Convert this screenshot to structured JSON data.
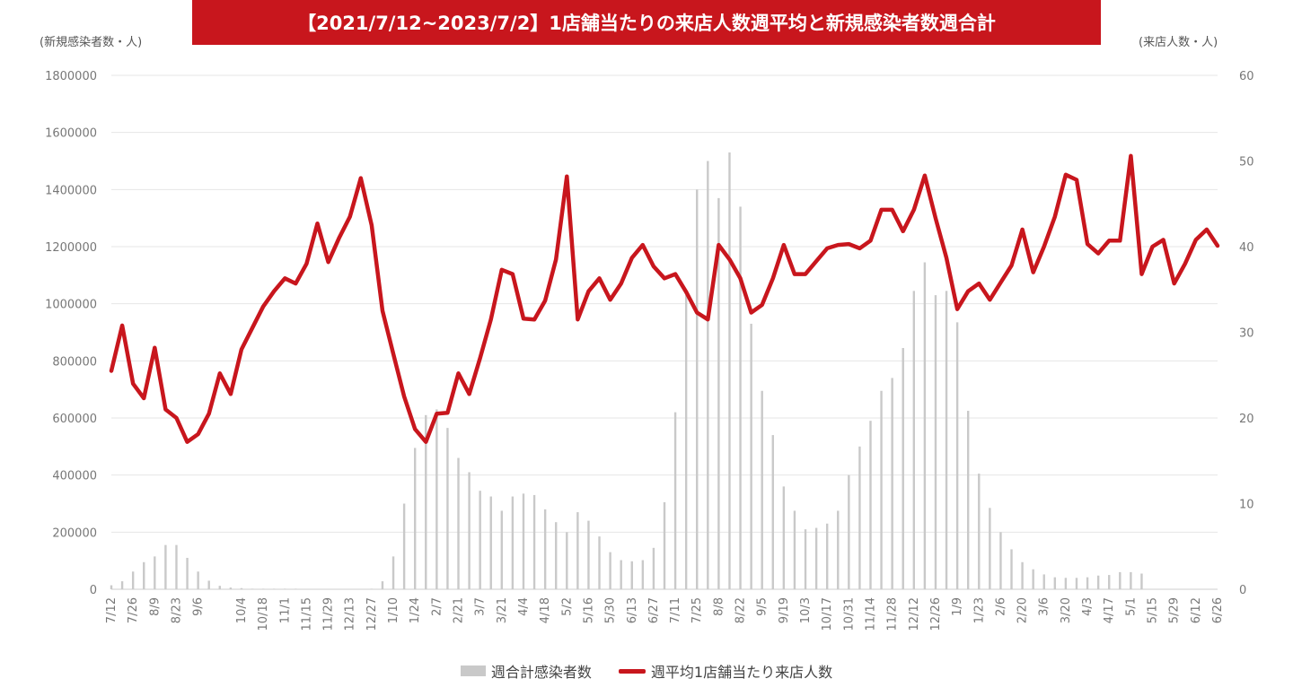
{
  "chart_data": {
    "type": "bar+line",
    "title": "【2021/7/12~2023/7/2】1店舗当たりの来店人数週平均と新規感染者数週合計",
    "ylabel": "(新規感染者数・人)",
    "y2label": "(来店人数・人)",
    "ylim": [
      0,
      1800000
    ],
    "y2lim": [
      0,
      60
    ],
    "yticks": [
      "1800000",
      "1600000",
      "1400000",
      "1200000",
      "1000000",
      "800000",
      "600000",
      "400000",
      "200000",
      "0"
    ],
    "y2ticks": [
      "60",
      "50",
      "40",
      "30",
      "20",
      "10",
      "0"
    ],
    "grid": true,
    "legend_position": "bottom",
    "x_labels": [
      "7/12",
      "7/26",
      "8/9",
      "8/23",
      "9/6",
      "10/4",
      "10/18",
      "11/1",
      "11/15",
      "11/29",
      "12/13",
      "12/27",
      "1/10",
      "1/24",
      "2/7",
      "2/21",
      "3/7",
      "3/21",
      "4/4",
      "4/18",
      "5/2",
      "5/16",
      "5/30",
      "6/13",
      "6/27",
      "7/11",
      "7/25",
      "8/8",
      "8/22",
      "9/5",
      "9/19",
      "10/3",
      "10/17",
      "10/31",
      "11/14",
      "11/28",
      "12/12",
      "12/26",
      "1/9",
      "1/23",
      "2/6",
      "2/20",
      "3/6",
      "3/20",
      "4/3",
      "4/17",
      "5/1",
      "5/15",
      "5/29",
      "6/12",
      "6/26"
    ],
    "x_label_index": [
      0,
      2,
      4,
      6,
      8,
      12,
      14,
      16,
      18,
      20,
      22,
      24,
      26,
      28,
      30,
      32,
      34,
      36,
      38,
      40,
      42,
      44,
      46,
      48,
      50,
      52,
      54,
      56,
      58,
      60,
      62,
      64,
      66,
      68,
      70,
      72,
      74,
      76,
      78,
      80,
      82,
      84,
      86,
      88,
      90,
      92,
      94,
      96,
      98,
      100,
      102
    ],
    "series": [
      {
        "name": "週合計感染者数",
        "type": "bar",
        "color": "#c9c9c9",
        "values": [
          14000,
          28000,
          62000,
          95000,
          115000,
          155000,
          155000,
          110000,
          62000,
          30000,
          12000,
          6000,
          4000,
          2000,
          2000,
          2000,
          2000,
          2000,
          1000,
          1000,
          1000,
          1000,
          1000,
          1000,
          2000,
          28000,
          115000,
          300000,
          495000,
          610000,
          630000,
          565000,
          460000,
          410000,
          345000,
          325000,
          275000,
          325000,
          335000,
          330000,
          280000,
          235000,
          200000,
          270000,
          240000,
          185000,
          130000,
          102000,
          98000,
          102000,
          145000,
          305000,
          620000,
          1030000,
          1400000,
          1500000,
          1370000,
          1530000,
          1340000,
          930000,
          695000,
          540000,
          360000,
          275000,
          210000,
          215000,
          230000,
          275000,
          400000,
          500000,
          590000,
          695000,
          740000,
          845000,
          1045000,
          1145000,
          1030000,
          1045000,
          935000,
          625000,
          405000,
          285000,
          200000,
          140000,
          95000,
          70000,
          52000,
          42000,
          40000,
          40000,
          42000,
          48000,
          50000,
          60000,
          60000,
          55000,
          0,
          0,
          0,
          0,
          0,
          0,
          0
        ]
      },
      {
        "name": "週平均1店舗当たり来店人数",
        "type": "line",
        "color": "#c8161d",
        "values": [
          25.5,
          30.8,
          24,
          22.3,
          28.2,
          21,
          20,
          17.2,
          18.1,
          20.5,
          25.2,
          22.8,
          28,
          30.5,
          33,
          34.8,
          36.3,
          35.7,
          38,
          42.7,
          38.2,
          41,
          43.5,
          48,
          42.5,
          32.5,
          27.5,
          22.5,
          18.7,
          17.2,
          20.5,
          20.6,
          25.2,
          22.8,
          27,
          31.5,
          37.3,
          36.8,
          31.6,
          31.5,
          33.7,
          38.5,
          48.2,
          31.5,
          34.8,
          36.3,
          33.8,
          35.7,
          38.7,
          40.2,
          37.7,
          36.3,
          36.8,
          34.7,
          32.3,
          31.5,
          40.2,
          38.5,
          36.3,
          32.3,
          33.2,
          36.3,
          40.2,
          36.8,
          36.8,
          38.3,
          39.8,
          40.2,
          40.3,
          39.8,
          40.7,
          44.3,
          44.3,
          41.8,
          44.3,
          48.3,
          43.3,
          38.7,
          32.7,
          34.8,
          35.7,
          33.8,
          35.8,
          37.8,
          42,
          37,
          40,
          43.5,
          48.4,
          47.8,
          40.3,
          39.2,
          40.7,
          40.7,
          50.6,
          36.8,
          40,
          40.8,
          35.7,
          38,
          40.8,
          42,
          40.1
        ]
      }
    ]
  }
}
